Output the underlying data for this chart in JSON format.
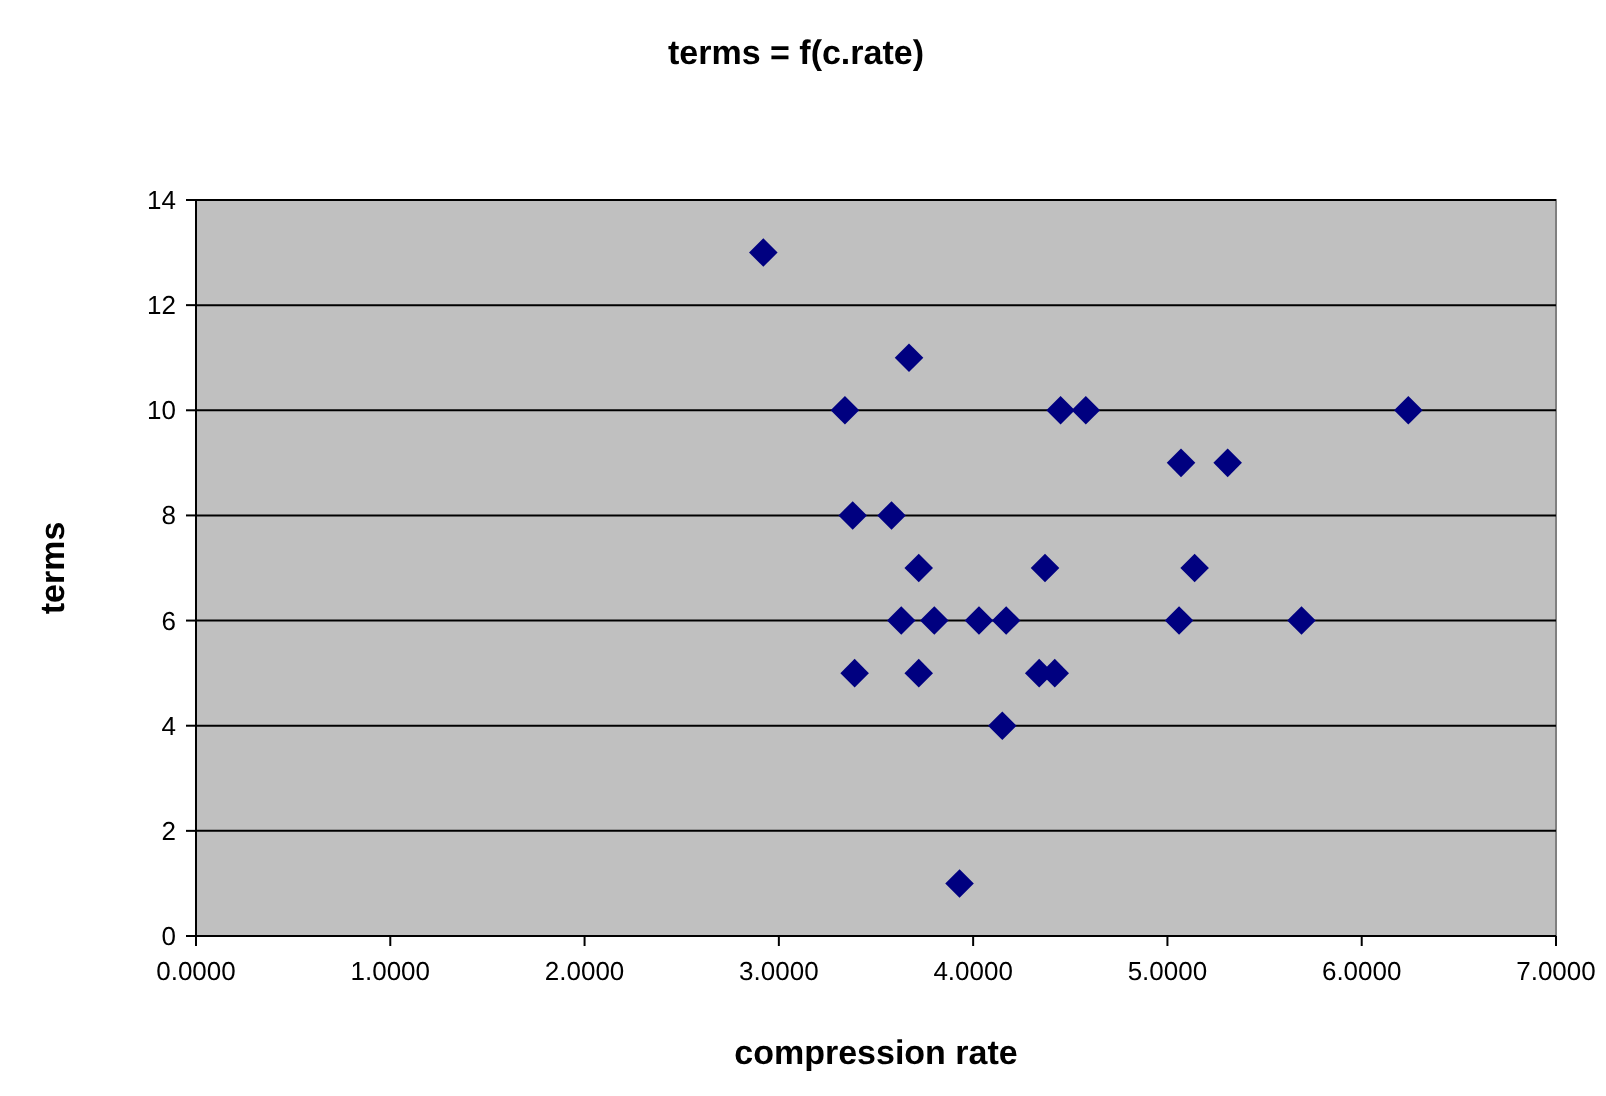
{
  "chart_data": {
    "type": "scatter",
    "title": "terms = f(c.rate)",
    "xlabel": "compression rate",
    "ylabel": "terms",
    "x": [
      2.92,
      3.34,
      3.38,
      3.39,
      3.58,
      3.63,
      3.67,
      3.72,
      3.72,
      3.8,
      3.93,
      4.03,
      4.15,
      4.17,
      4.34,
      4.37,
      4.42,
      4.45,
      4.58,
      5.07,
      5.06,
      5.14,
      5.31,
      5.69,
      6.24
    ],
    "values": [
      13,
      10,
      8,
      5,
      8,
      6,
      11,
      7,
      5,
      6,
      1,
      6,
      4,
      6,
      5,
      7,
      5,
      10,
      10,
      9,
      6,
      7,
      9,
      6,
      10
    ],
    "color": "#000080",
    "marker": "diamond",
    "grid": "y",
    "xlim": [
      0,
      7
    ],
    "xticks": [
      {
        "value": 0,
        "label": "0.0000"
      },
      {
        "value": 1,
        "label": "1.0000"
      },
      {
        "value": 2,
        "label": "2.0000"
      },
      {
        "value": 3,
        "label": "3.0000"
      },
      {
        "value": 4,
        "label": "4.0000"
      },
      {
        "value": 5,
        "label": "5.0000"
      },
      {
        "value": 6,
        "label": "6.0000"
      },
      {
        "value": 7,
        "label": "7.0000"
      }
    ],
    "ylim": [
      0,
      14
    ],
    "yticks": [
      0,
      2,
      4,
      6,
      8,
      10,
      12,
      14
    ]
  }
}
